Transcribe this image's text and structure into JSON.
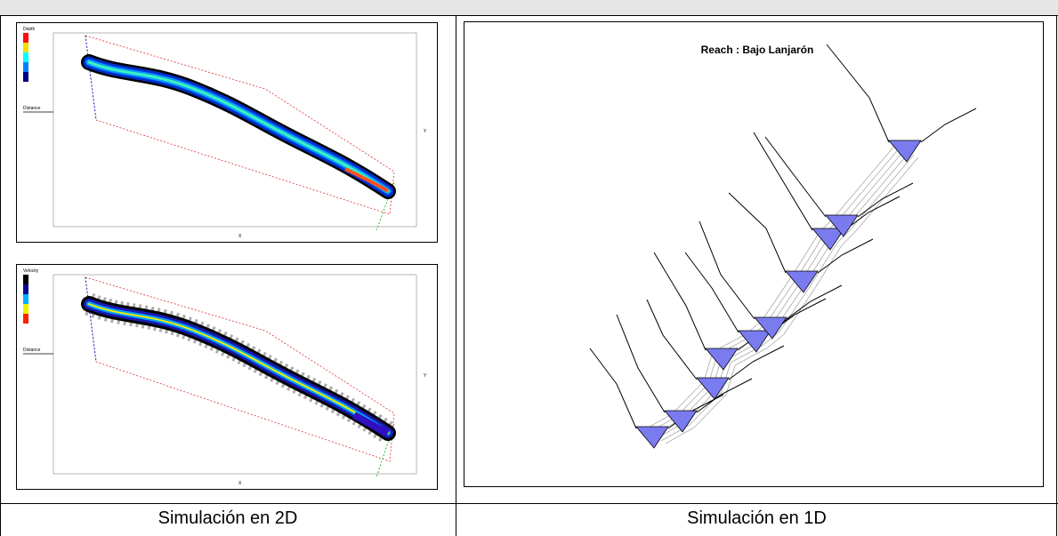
{
  "panels": {
    "depth": {
      "legend_title": "Depth",
      "distance_label": "Distance",
      "x_label": "X",
      "y_label": "Y"
    },
    "velocity": {
      "legend_title": "Velocity",
      "distance_label": "Distance",
      "x_label": "X",
      "y_label": "Y"
    },
    "reach_title": "Reach : Bajo Lanjarón"
  },
  "captions": {
    "left": "Simulación en 2D",
    "right": "Simulación en 1D"
  }
}
